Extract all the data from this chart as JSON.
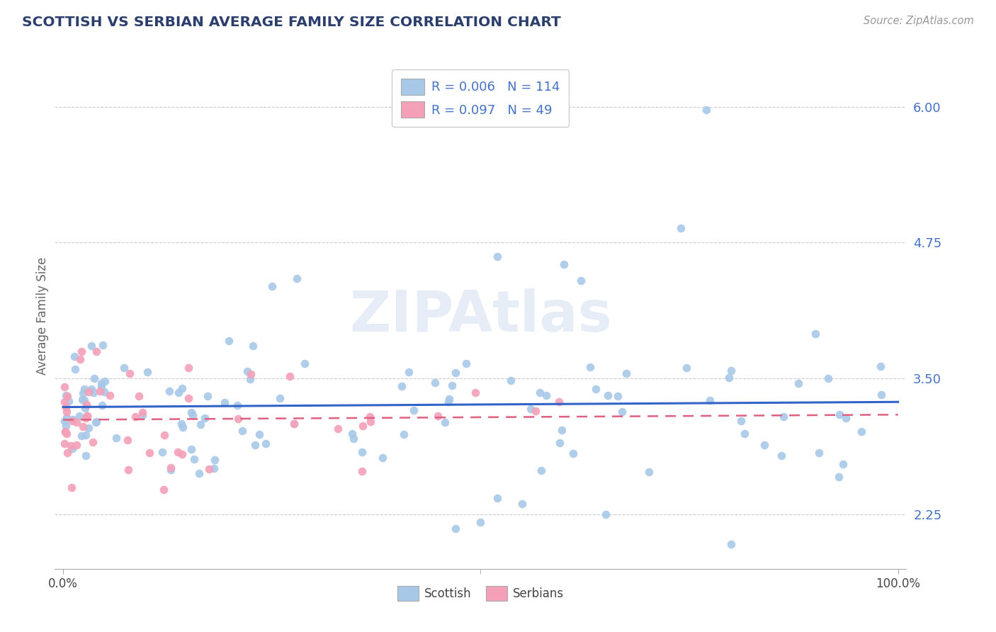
{
  "title": "SCOTTISH VS SERBIAN AVERAGE FAMILY SIZE CORRELATION CHART",
  "source_text": "Source: ZipAtlas.com",
  "ylabel": "Average Family Size",
  "x_tick_labels": [
    "0.0%",
    "100.0%"
  ],
  "y_ticks": [
    2.25,
    3.5,
    4.75,
    6.0
  ],
  "xlim": [
    -1.0,
    101.0
  ],
  "ylim": [
    1.75,
    6.4
  ],
  "scottish_color": "#a8c8e8",
  "serbian_color": "#f4a0b8",
  "trendline_scottish_color": "#3264c8",
  "trendline_serbian_color": "#e06080",
  "legend_r_scottish": "R = 0.006",
  "legend_n_scottish": "N = 114",
  "legend_r_serbian": "R = 0.097",
  "legend_n_serbian": "N = 49",
  "legend_label_scottish": "Scottish",
  "legend_label_serbian": "Serbians",
  "title_color": "#2c3e6b",
  "ytick_color": "#4472c4",
  "background_color": "#ffffff",
  "watermark_text": "ZIPAtlas"
}
